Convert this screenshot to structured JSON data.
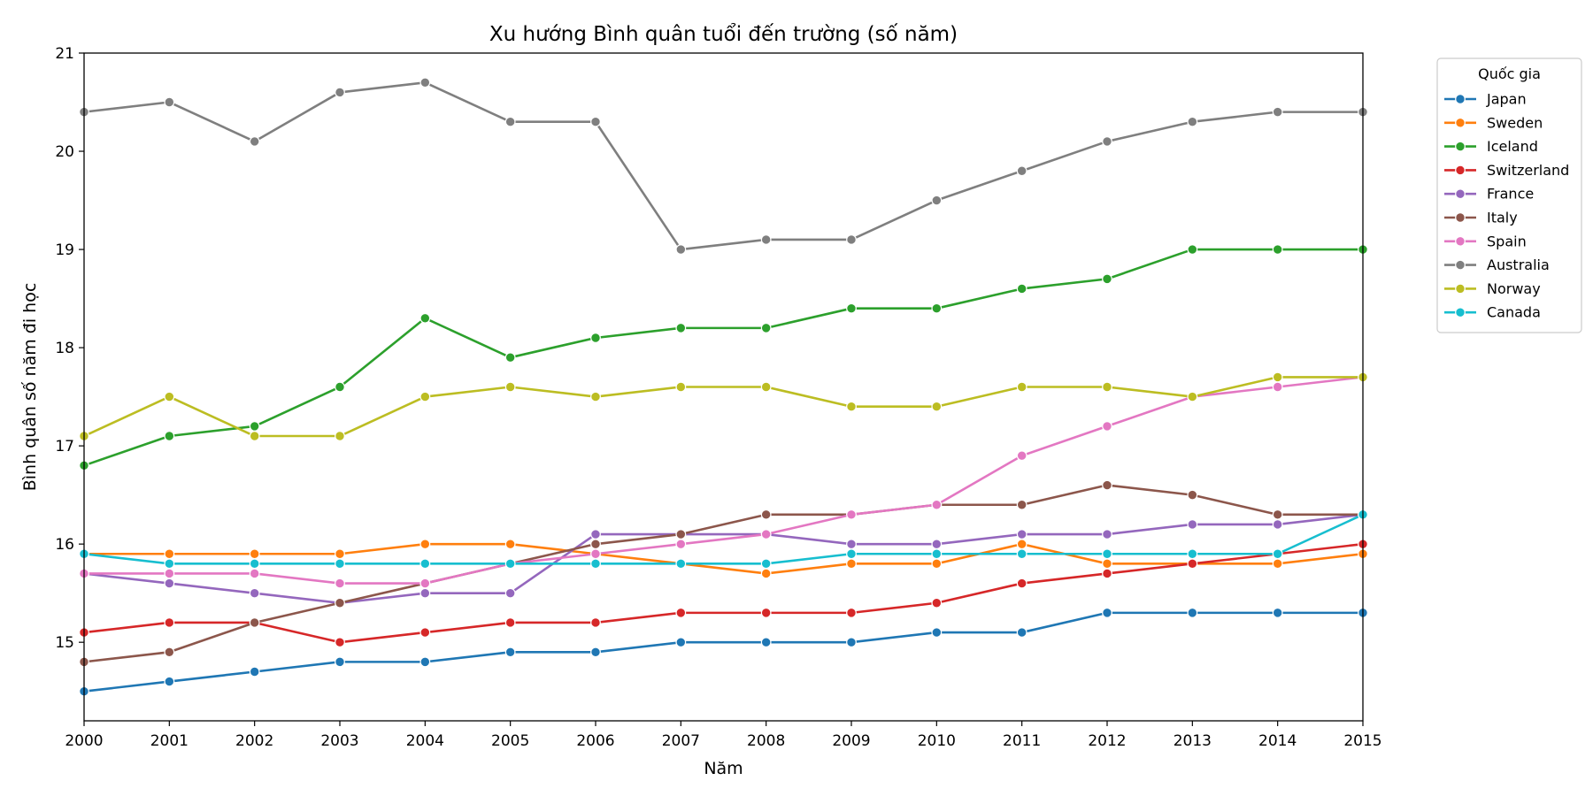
{
  "chart_data": {
    "type": "line",
    "title": "Xu hướng Bình quân tuổi đến trường (số năm)",
    "xlabel": "Năm",
    "ylabel": "Bình quân số năm đi học",
    "x": [
      2000,
      2001,
      2002,
      2003,
      2004,
      2005,
      2006,
      2007,
      2008,
      2009,
      2010,
      2011,
      2012,
      2013,
      2014,
      2015
    ],
    "xlim": [
      2000,
      2015
    ],
    "ylim": [
      14.2,
      21.0
    ],
    "yticks": [
      15,
      16,
      17,
      18,
      19,
      20,
      21
    ],
    "grid": false,
    "legend": {
      "title": "Quốc gia",
      "placement": "outside-right-top"
    },
    "series": [
      {
        "name": "Japan",
        "color": "#1f77b4",
        "values": [
          14.5,
          14.6,
          14.7,
          14.8,
          14.8,
          14.9,
          14.9,
          15.0,
          15.0,
          15.0,
          15.1,
          15.1,
          15.3,
          15.3,
          15.3,
          15.3
        ]
      },
      {
        "name": "Sweden",
        "color": "#ff7f0e",
        "values": [
          15.9,
          15.9,
          15.9,
          15.9,
          16.0,
          16.0,
          15.9,
          15.8,
          15.7,
          15.8,
          15.8,
          16.0,
          15.8,
          15.8,
          15.8,
          15.9
        ]
      },
      {
        "name": "Iceland",
        "color": "#2ca02c",
        "values": [
          16.8,
          17.1,
          17.2,
          17.6,
          18.3,
          17.9,
          18.1,
          18.2,
          18.2,
          18.4,
          18.4,
          18.6,
          18.7,
          19.0,
          19.0,
          19.0
        ]
      },
      {
        "name": "Switzerland",
        "color": "#d62728",
        "values": [
          15.1,
          15.2,
          15.2,
          15.0,
          15.1,
          15.2,
          15.2,
          15.3,
          15.3,
          15.3,
          15.4,
          15.6,
          15.7,
          15.8,
          15.9,
          16.0
        ]
      },
      {
        "name": "France",
        "color": "#9467bd",
        "values": [
          15.7,
          15.6,
          15.5,
          15.4,
          15.5,
          15.5,
          16.1,
          16.1,
          16.1,
          16.0,
          16.0,
          16.1,
          16.1,
          16.2,
          16.2,
          16.3
        ]
      },
      {
        "name": "Italy",
        "color": "#8c564b",
        "values": [
          14.8,
          14.9,
          15.2,
          15.4,
          15.6,
          15.8,
          16.0,
          16.1,
          16.3,
          16.3,
          16.4,
          16.4,
          16.6,
          16.5,
          16.3,
          16.3
        ]
      },
      {
        "name": "Spain",
        "color": "#e377c2",
        "values": [
          15.7,
          15.7,
          15.7,
          15.6,
          15.6,
          15.8,
          15.9,
          16.0,
          16.1,
          16.3,
          16.4,
          16.9,
          17.2,
          17.5,
          17.6,
          17.7
        ]
      },
      {
        "name": "Australia",
        "color": "#7f7f7f",
        "values": [
          20.4,
          20.5,
          20.1,
          20.6,
          20.7,
          20.3,
          20.3,
          19.0,
          19.1,
          19.1,
          19.5,
          19.8,
          20.1,
          20.3,
          20.4,
          20.4
        ]
      },
      {
        "name": "Norway",
        "color": "#bcbd22",
        "values": [
          17.1,
          17.5,
          17.1,
          17.1,
          17.5,
          17.6,
          17.5,
          17.6,
          17.6,
          17.4,
          17.4,
          17.6,
          17.6,
          17.5,
          17.7,
          17.7
        ]
      },
      {
        "name": "Canada",
        "color": "#17becf",
        "values": [
          15.9,
          15.8,
          15.8,
          15.8,
          15.8,
          15.8,
          15.8,
          15.8,
          15.8,
          15.9,
          15.9,
          15.9,
          15.9,
          15.9,
          15.9,
          16.3
        ]
      }
    ]
  }
}
